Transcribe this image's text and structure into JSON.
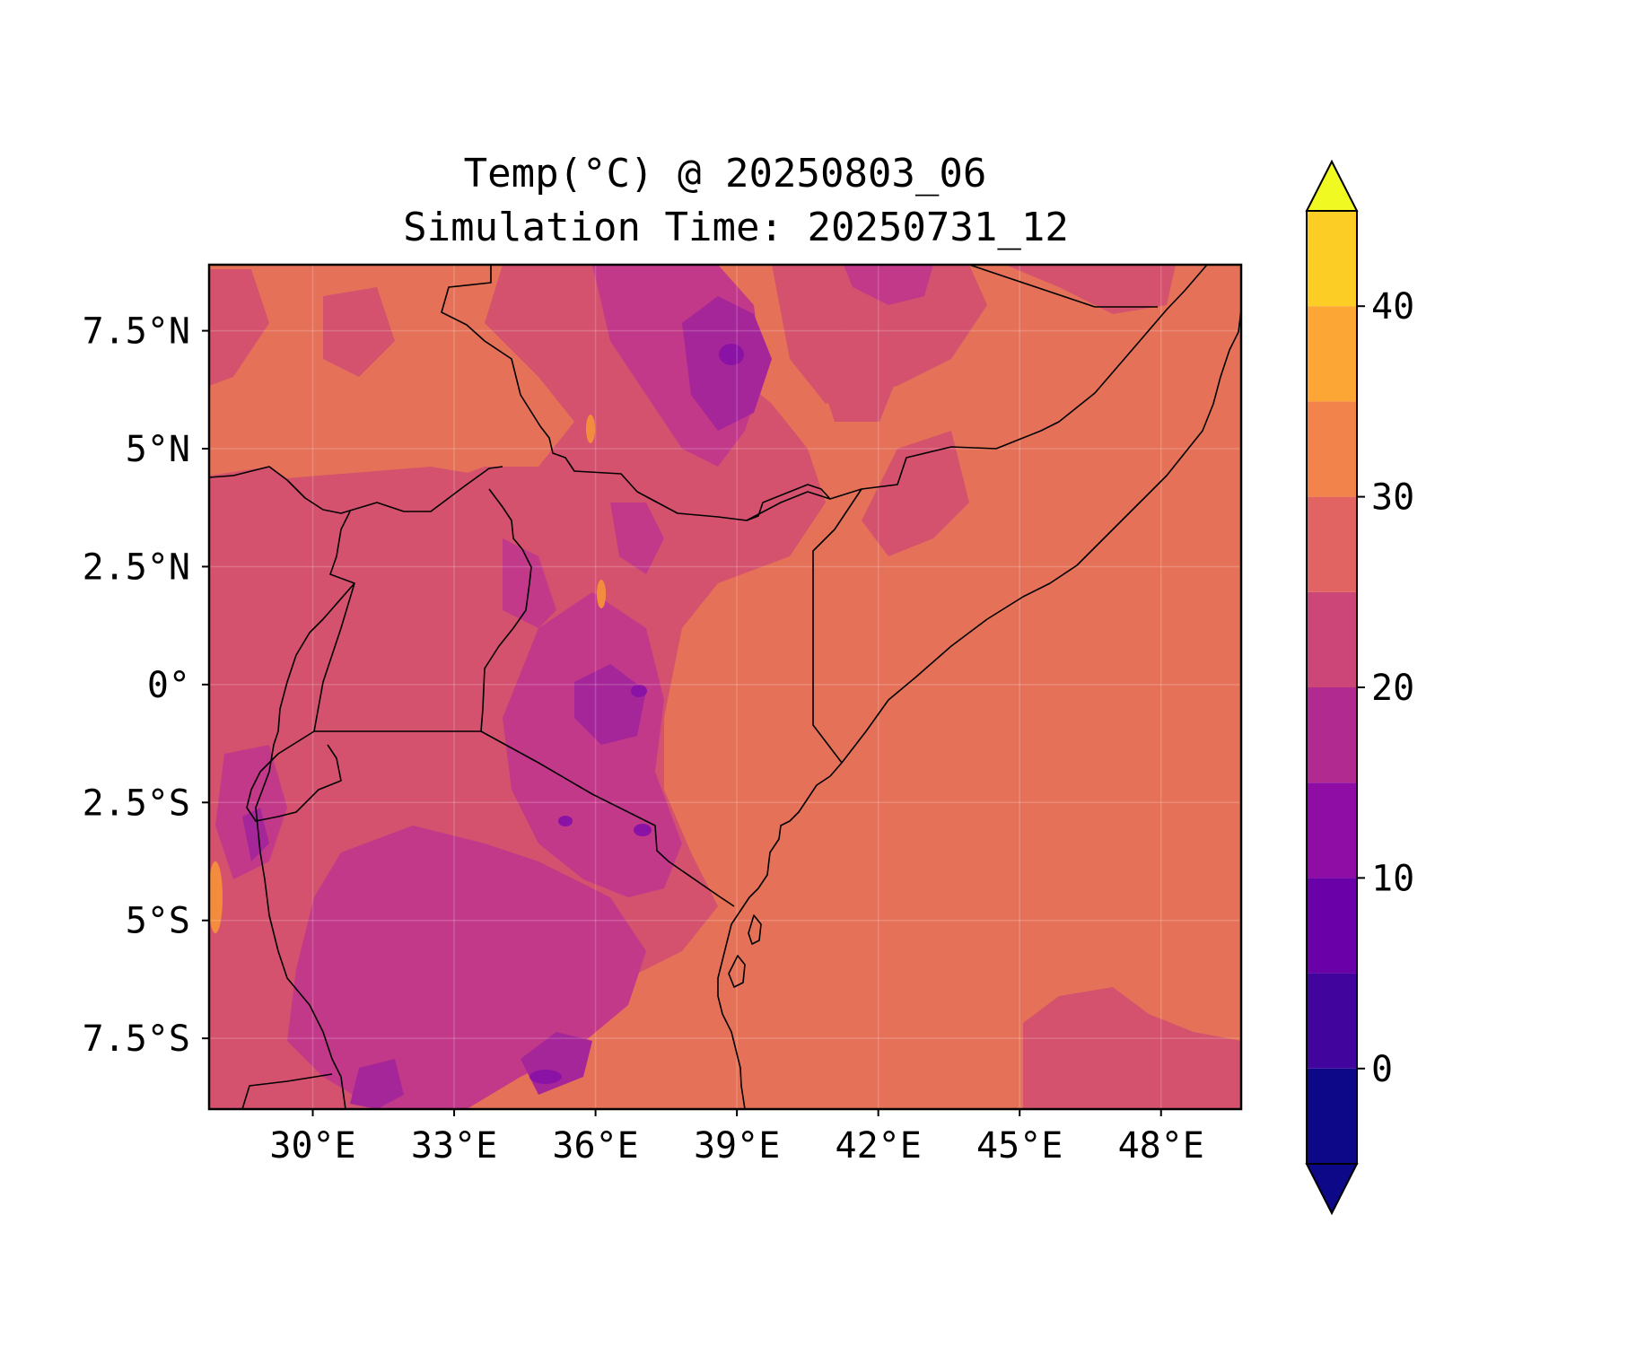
{
  "title": {
    "line1": "Temp(°C) @ 20250803_06",
    "line2": "Simulation Time: 20250731_12"
  },
  "map": {
    "x_ticks": [
      {
        "lon": 30,
        "label": "30°E"
      },
      {
        "lon": 33,
        "label": "33°E"
      },
      {
        "lon": 36,
        "label": "36°E"
      },
      {
        "lon": 39,
        "label": "39°E"
      },
      {
        "lon": 42,
        "label": "42°E"
      },
      {
        "lon": 45,
        "label": "45°E"
      },
      {
        "lon": 48,
        "label": "48°E"
      }
    ],
    "y_ticks": [
      {
        "lat": 7.5,
        "label": "7.5°N"
      },
      {
        "lat": 5,
        "label": "5°N"
      },
      {
        "lat": 2.5,
        "label": "2.5°N"
      },
      {
        "lat": 0,
        "label": "0°"
      },
      {
        "lat": -2.5,
        "label": "2.5°S"
      },
      {
        "lat": -5,
        "label": "5°S"
      },
      {
        "lat": -7.5,
        "label": "7.5°S"
      }
    ],
    "lon_range": [
      27.8,
      49.7
    ],
    "lat_range": [
      -9.0,
      8.9
    ],
    "gridlines": true
  },
  "colorbar": {
    "levels": [
      -5,
      0,
      5,
      10,
      15,
      20,
      25,
      30,
      35,
      40,
      45
    ],
    "tick_labels": [
      {
        "value": 0,
        "label": "0"
      },
      {
        "value": 10,
        "label": "10"
      },
      {
        "value": 20,
        "label": "20"
      },
      {
        "value": 30,
        "label": "30"
      },
      {
        "value": 40,
        "label": "40"
      }
    ],
    "colors": [
      "#0d0887",
      "#41049d",
      "#6a00a8",
      "#8f0da4",
      "#b12a90",
      "#cc4778",
      "#e16462",
      "#f2844b",
      "#fca636",
      "#fcce25"
    ],
    "under_color": "#0d0887",
    "over_color": "#f0f921",
    "extend": "both"
  },
  "fill_colors": {
    "warm": "#e57258",
    "mild": "#d4526e",
    "cool": "#c2398a",
    "cold": "#a52699",
    "colder": "#8a12a5",
    "hot": "#f48c3e"
  }
}
